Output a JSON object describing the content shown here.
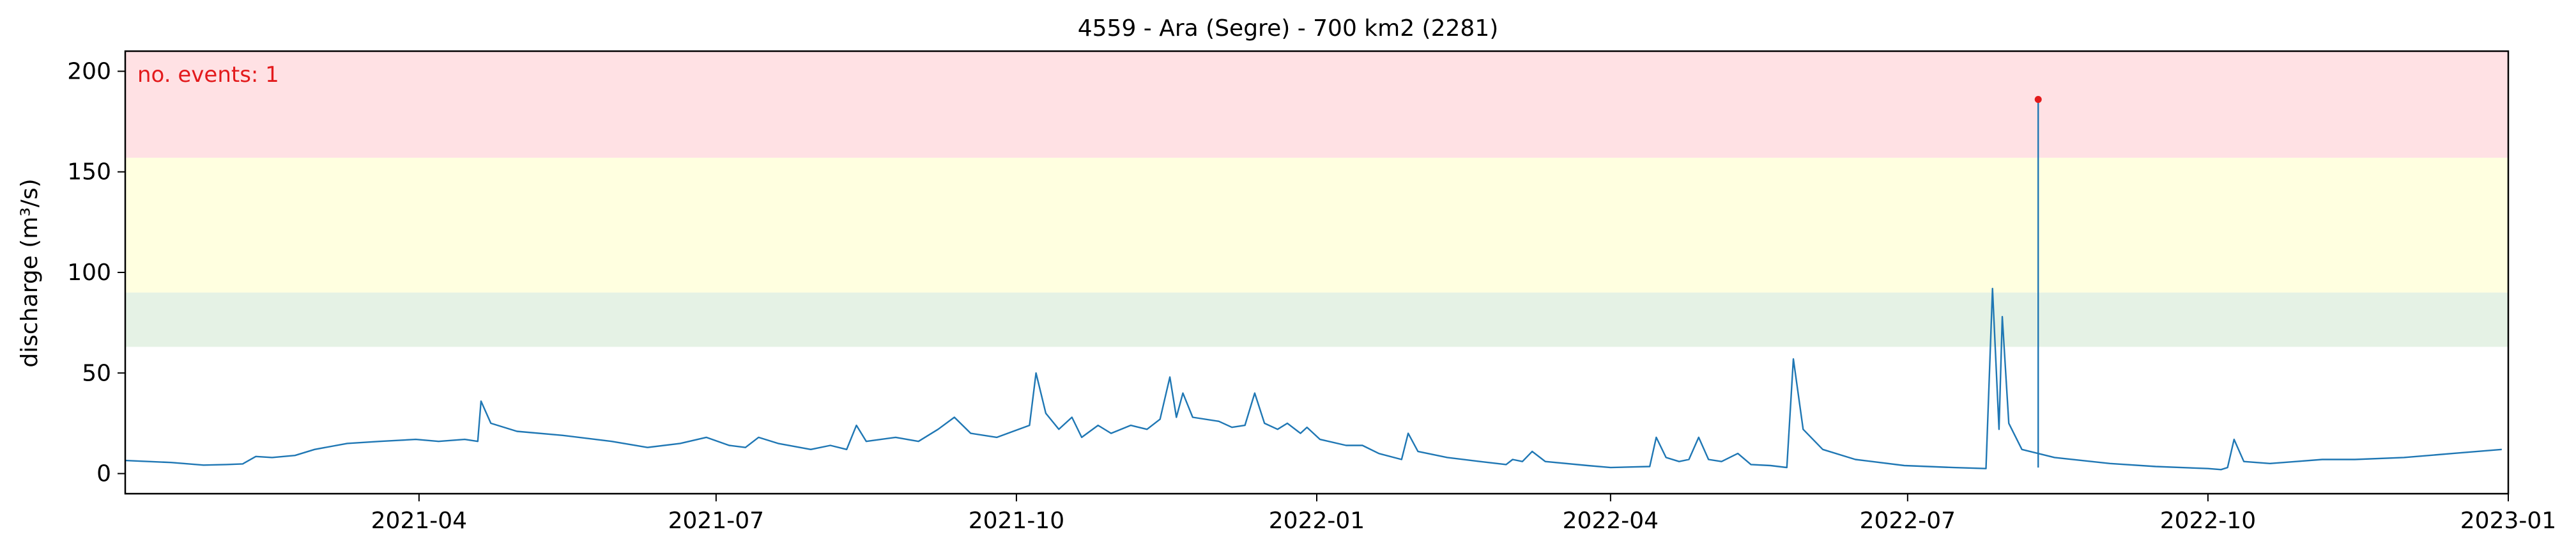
{
  "chart_data": {
    "type": "line",
    "title": "4559 - Ara (Segre) - 700 km2 (2281)",
    "xlabel": "",
    "ylabel": "discharge (m³/s)",
    "annotation": "no. events: 1",
    "xlim": [
      "2021-01-01",
      "2023-01-01"
    ],
    "ylim": [
      -10,
      210
    ],
    "y_ticks": [
      0,
      50,
      100,
      150,
      200
    ],
    "x_ticks": [
      {
        "date": "2021-04-01",
        "label": "2021-04"
      },
      {
        "date": "2021-07-01",
        "label": "2021-07"
      },
      {
        "date": "2021-10-01",
        "label": "2021-10"
      },
      {
        "date": "2022-01-01",
        "label": "2022-01"
      },
      {
        "date": "2022-04-01",
        "label": "2022-04"
      },
      {
        "date": "2022-07-01",
        "label": "2022-07"
      },
      {
        "date": "2022-10-01",
        "label": "2022-10"
      },
      {
        "date": "2023-01-01",
        "label": "2023-01"
      }
    ],
    "threshold_bands": [
      {
        "from": 63,
        "to": 90,
        "color": "#e5f2e5"
      },
      {
        "from": 90,
        "to": 157,
        "color": "#ffffe0"
      },
      {
        "from": 157,
        "to": 210,
        "color": "#ffe1e4"
      }
    ],
    "series": [
      {
        "color": "#1f77b4",
        "points": [
          [
            "2021-01-01",
            6.5
          ],
          [
            "2021-01-15",
            5.5
          ],
          [
            "2021-01-25",
            4.2
          ],
          [
            "2021-02-01",
            4.5
          ],
          [
            "2021-02-06",
            4.8
          ],
          [
            "2021-02-10",
            8.5
          ],
          [
            "2021-02-15",
            8.0
          ],
          [
            "2021-02-22",
            9.0
          ],
          [
            "2021-02-28",
            12.0
          ],
          [
            "2021-03-10",
            15.0
          ],
          [
            "2021-03-20",
            16.0
          ],
          [
            "2021-03-31",
            17.0
          ],
          [
            "2021-04-07",
            16.0
          ],
          [
            "2021-04-15",
            17.0
          ],
          [
            "2021-04-19",
            16.0
          ],
          [
            "2021-04-20",
            36.0
          ],
          [
            "2021-04-23",
            25.0
          ],
          [
            "2021-05-01",
            21.0
          ],
          [
            "2021-05-15",
            19.0
          ],
          [
            "2021-05-30",
            16.0
          ],
          [
            "2021-06-10",
            13.0
          ],
          [
            "2021-06-20",
            15.0
          ],
          [
            "2021-06-28",
            18.0
          ],
          [
            "2021-07-05",
            14.0
          ],
          [
            "2021-07-10",
            13.0
          ],
          [
            "2021-07-14",
            18.0
          ],
          [
            "2021-07-20",
            15.0
          ],
          [
            "2021-07-30",
            12.0
          ],
          [
            "2021-08-05",
            14.0
          ],
          [
            "2021-08-10",
            12.0
          ],
          [
            "2021-08-13",
            24.0
          ],
          [
            "2021-08-16",
            16.0
          ],
          [
            "2021-08-25",
            18.0
          ],
          [
            "2021-09-01",
            16.0
          ],
          [
            "2021-09-07",
            22.0
          ],
          [
            "2021-09-12",
            28.0
          ],
          [
            "2021-09-17",
            20.0
          ],
          [
            "2021-09-25",
            18.0
          ],
          [
            "2021-09-30",
            21.0
          ],
          [
            "2021-10-05",
            24.0
          ],
          [
            "2021-10-07",
            50.0
          ],
          [
            "2021-10-10",
            30.0
          ],
          [
            "2021-10-14",
            22.0
          ],
          [
            "2021-10-18",
            28.0
          ],
          [
            "2021-10-21",
            18.0
          ],
          [
            "2021-10-26",
            24.0
          ],
          [
            "2021-10-30",
            20.0
          ],
          [
            "2021-11-05",
            24.0
          ],
          [
            "2021-11-10",
            22.0
          ],
          [
            "2021-11-14",
            27.0
          ],
          [
            "2021-11-17",
            48.0
          ],
          [
            "2021-11-19",
            28.0
          ],
          [
            "2021-11-21",
            40.0
          ],
          [
            "2021-11-24",
            28.0
          ],
          [
            "2021-12-02",
            26.0
          ],
          [
            "2021-12-06",
            23.0
          ],
          [
            "2021-12-10",
            24.0
          ],
          [
            "2021-12-13",
            40.0
          ],
          [
            "2021-12-16",
            25.0
          ],
          [
            "2021-12-20",
            22.0
          ],
          [
            "2021-12-23",
            25.0
          ],
          [
            "2021-12-27",
            20.0
          ],
          [
            "2021-12-29",
            23.0
          ],
          [
            "2022-01-02",
            17.0
          ],
          [
            "2022-01-10",
            14.0
          ],
          [
            "2022-01-20",
            10.0
          ],
          [
            "2022-01-27",
            7.0
          ],
          [
            "2022-01-29",
            20.0
          ],
          [
            "2022-02-01",
            11.0
          ],
          [
            "2022-02-10",
            8.0
          ],
          [
            "2022-02-20",
            6.0
          ],
          [
            "2022-02-28",
            4.5
          ],
          [
            "2022-03-02",
            7.0
          ],
          [
            "2022-03-05",
            6.0
          ],
          [
            "2022-03-08",
            11.0
          ],
          [
            "2022-03-12",
            6.0
          ],
          [
            "2022-03-25",
            4.0
          ],
          [
            "2022-04-01",
            3.0
          ],
          [
            "2022-04-13",
            3.5
          ],
          [
            "2022-04-15",
            18.0
          ],
          [
            "2022-04-18",
            8.0
          ],
          [
            "2022-04-22",
            6.0
          ],
          [
            "2022-04-25",
            7.0
          ],
          [
            "2022-04-28",
            18.0
          ],
          [
            "2022-05-01",
            7.0
          ],
          [
            "2022-05-05",
            6.0
          ],
          [
            "2022-05-10",
            10.0
          ],
          [
            "2022-05-14",
            4.5
          ],
          [
            "2022-05-20",
            4.0
          ],
          [
            "2022-05-25",
            3.0
          ],
          [
            "2022-05-27",
            57.0
          ],
          [
            "2022-05-30",
            22.0
          ],
          [
            "2022-06-05",
            12.0
          ],
          [
            "2022-06-15",
            7.0
          ],
          [
            "2022-06-30",
            4.0
          ],
          [
            "2022-07-15",
            3.0
          ],
          [
            "2022-07-25",
            2.5
          ],
          [
            "2022-07-27",
            92.0
          ],
          [
            "2022-07-29",
            22.0
          ],
          [
            "2022-07-30",
            78.0
          ],
          [
            "2022-08-01",
            25.0
          ],
          [
            "2022-08-05",
            12.0
          ],
          [
            "2022-08-15",
            8.0
          ],
          [
            "2022-09-01",
            5.0
          ],
          [
            "2022-09-15",
            3.5
          ],
          [
            "2022-10-01",
            2.5
          ],
          [
            "2022-10-05",
            2.0
          ],
          [
            "2022-10-07",
            3.0
          ],
          [
            "2022-10-09",
            17.0
          ],
          [
            "2022-10-12",
            6.0
          ],
          [
            "2022-10-20",
            5.0
          ],
          [
            "2022-10-28",
            6.0
          ],
          [
            "2022-11-05",
            7.0
          ],
          [
            "2022-11-15",
            7.0
          ],
          [
            "2022-11-30",
            8.0
          ],
          [
            "2022-12-15",
            10.0
          ],
          [
            "2022-12-30",
            12.0
          ],
          [
            "2022-01-15",
            14.0
          ]
        ]
      }
    ],
    "events": [
      {
        "date": "2022-08-10",
        "value": 186,
        "color": "#e31a1c"
      }
    ]
  }
}
